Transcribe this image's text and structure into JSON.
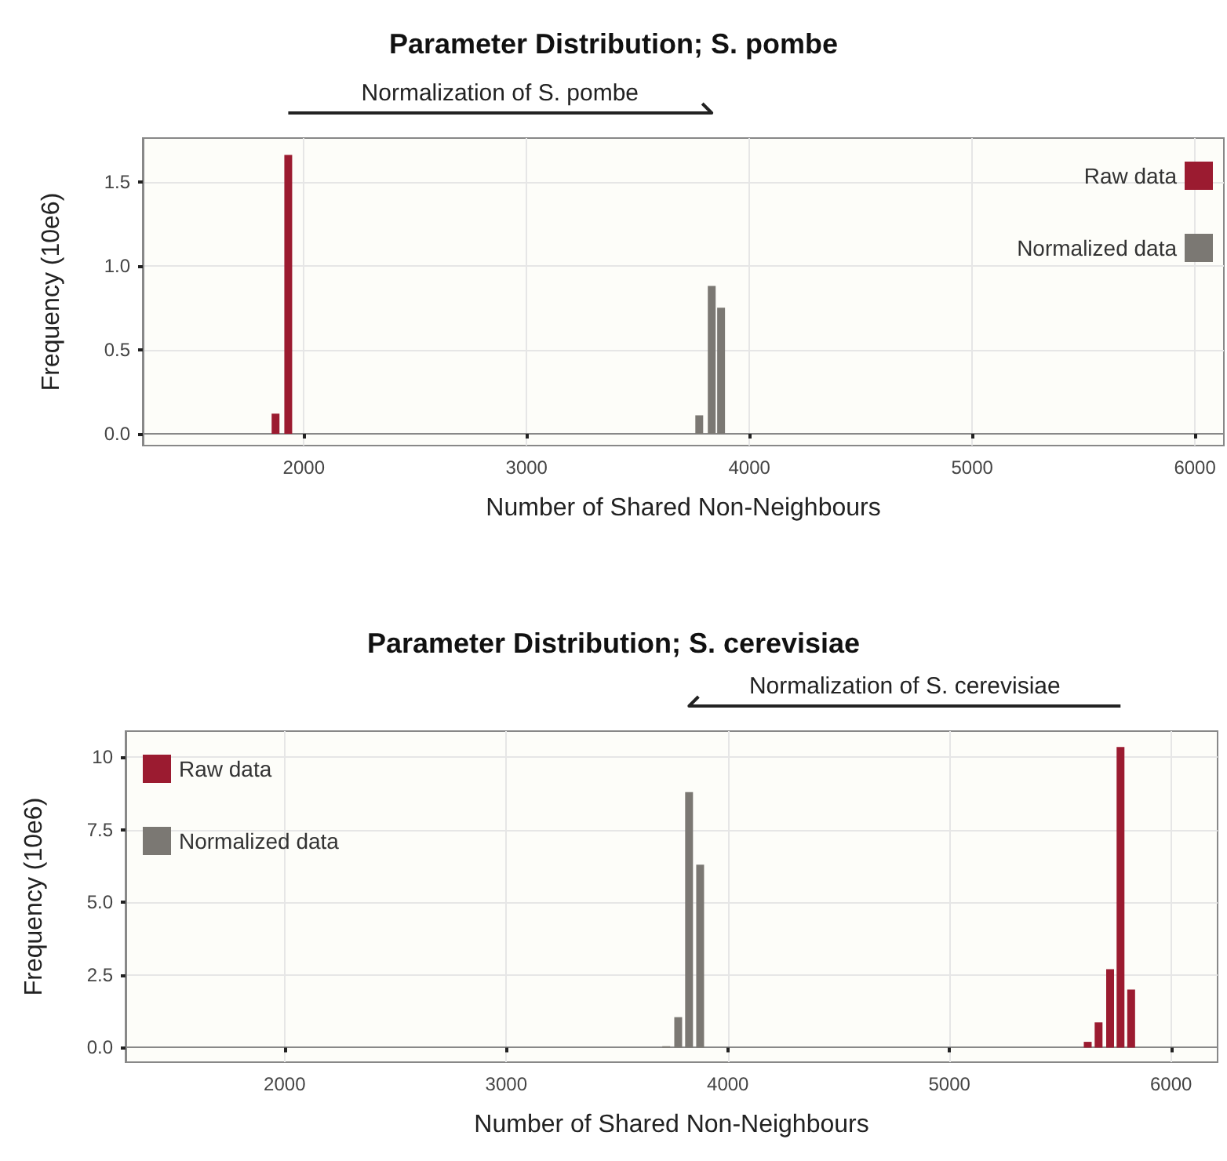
{
  "chart_data": [
    {
      "type": "bar",
      "title": "Parameter Distribution; S. pombe",
      "xlabel": "Number of Shared Non-Neighbours",
      "ylabel": "Frequency (10e6)",
      "annotations": [
        "Normalization of S. pombe"
      ],
      "series": [
        {
          "name": "Raw data",
          "color": "#9b1b30",
          "x": [
            1873,
            1930
          ],
          "values": [
            0.12,
            1.66
          ]
        },
        {
          "name": "Normalized data",
          "color": "#7b7873",
          "x": [
            3775,
            3831,
            3873
          ],
          "values": [
            0.11,
            0.88,
            0.75
          ]
        }
      ],
      "xlim": [
        1277,
        6130
      ],
      "xticks": [
        2000,
        3000,
        4000,
        5000,
        6000
      ],
      "ylim": [
        -0.07,
        1.76
      ],
      "yticks": [
        {
          "value": 0,
          "label": "0.0"
        },
        {
          "value": 0.5,
          "label": "0.5"
        },
        {
          "value": 1,
          "label": "1.0"
        },
        {
          "value": 1.5,
          "label": "1.5"
        }
      ],
      "grid": true,
      "legend": "top right"
    },
    {
      "type": "bar",
      "title": "Parameter Distribution; S. cerevisiae",
      "xlabel": "Number of Shared Non-Neighbours",
      "ylabel": "Frequency (10e6)",
      "annotations": [
        "Normalization of S. cerevisiae"
      ],
      "series": [
        {
          "name": "Raw data",
          "color": "#9b1b30",
          "x": [
            5624,
            5673,
            5725,
            5772,
            5820
          ],
          "values": [
            0.2,
            0.87,
            2.7,
            10.35,
            2.0
          ]
        },
        {
          "name": "Normalized data",
          "color": "#7b7873",
          "x": [
            3722,
            3776,
            3825,
            3875
          ],
          "values": [
            0.05,
            1.05,
            8.8,
            6.3
          ]
        }
      ],
      "xlim": [
        1282,
        6210
      ],
      "xticks": [
        2000,
        3000,
        4000,
        5000,
        6000
      ],
      "ylim": [
        -0.5,
        10.9
      ],
      "yticks": [
        {
          "value": 0,
          "label": "0.0"
        },
        {
          "value": 2.5,
          "label": "2.5"
        },
        {
          "value": 5,
          "label": "5.0"
        },
        {
          "value": 7.5,
          "label": "7.5"
        },
        {
          "value": 10,
          "label": "10"
        }
      ],
      "grid": true,
      "legend": "top left"
    }
  ]
}
